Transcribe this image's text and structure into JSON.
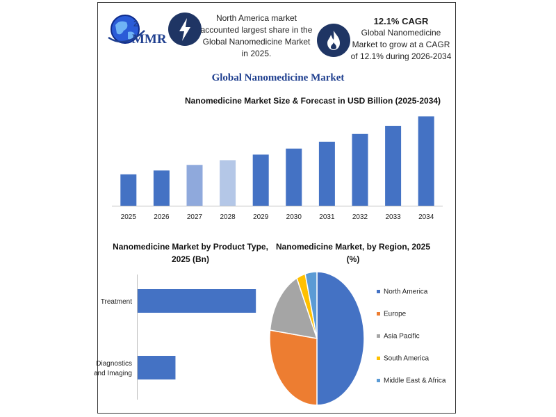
{
  "brand": {
    "logo_text": "MMR",
    "accent": "#1f3f8f",
    "badge_color": "#1f3564"
  },
  "header": {
    "note1": "North America market accounted largest share in the Global Nanomedicine Market in 2025.",
    "note1_icon": "lightning-icon",
    "note2_title": "12.1% CAGR",
    "note2_text": "Global Nanomedicine Market to grow at a CAGR of 12.1% during 2026-2034",
    "note2_icon": "flame-icon"
  },
  "main_title": "Global Nanomedicine Market",
  "chart_data": [
    {
      "type": "bar",
      "title": "Nanomedicine Market Size & Forecast in USD Billion (2025-2034)",
      "categories": [
        "2025",
        "2026",
        "2027",
        "2028",
        "2029",
        "2030",
        "2031",
        "2032",
        "2033",
        "2034"
      ],
      "values": [
        36.5,
        41.0,
        47.5,
        53.0,
        59.5,
        66.5,
        74.5,
        83.5,
        93.0,
        104.0
      ],
      "colors": [
        "#4472c4",
        "#4472c4",
        "#8fa9dc",
        "#b4c7e7",
        "#4472c4",
        "#4472c4",
        "#4472c4",
        "#4472c4",
        "#4472c4",
        "#4472c4"
      ],
      "ylim": [
        0,
        110
      ],
      "grid": false,
      "show_y_axis": false
    },
    {
      "type": "bar",
      "orientation": "horizontal",
      "title": "Nanomedicine Market by Product Type, 2025 (Bn)",
      "categories": [
        "Treatment",
        "Diagnostics and Imaging"
      ],
      "values": [
        25.0,
        8.0
      ],
      "color": "#4472c4",
      "xlim": [
        0,
        26
      ]
    },
    {
      "type": "pie",
      "title": "Nanomedicine Market, by Region, 2025 (%)",
      "labels": [
        "North America",
        "Europe",
        "Asia Pacific",
        "South America",
        "Middle East & Africa"
      ],
      "values": [
        50,
        27,
        16,
        3,
        4
      ],
      "colors": [
        "#4472c4",
        "#ed7d31",
        "#a5a5a5",
        "#ffc000",
        "#5b9bd5"
      ],
      "legend": "right"
    }
  ]
}
